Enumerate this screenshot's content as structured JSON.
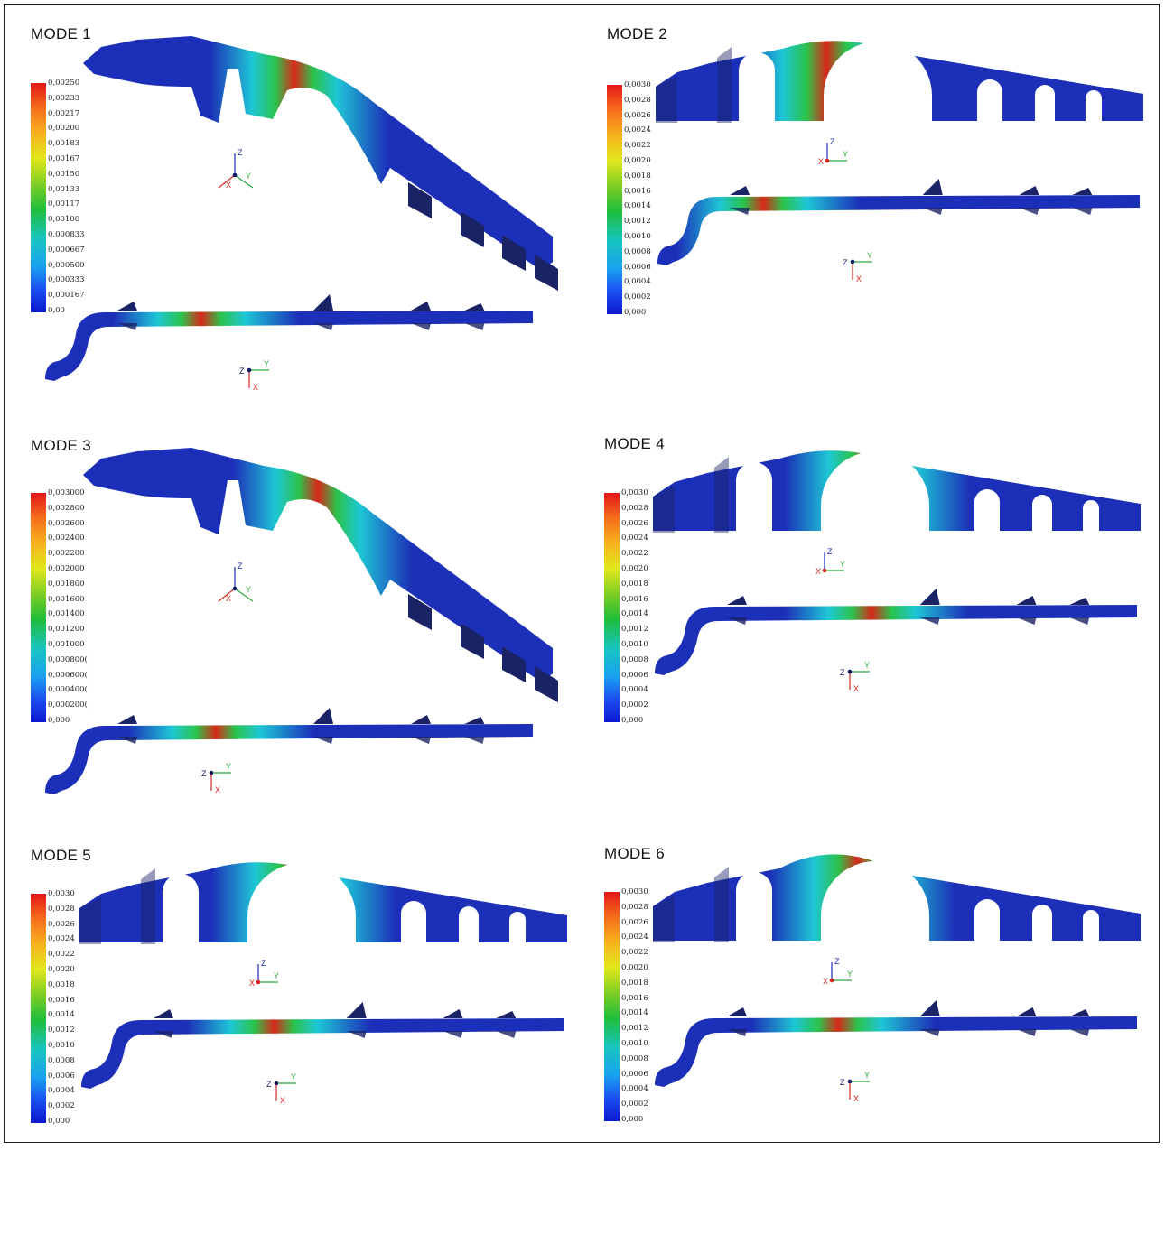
{
  "panels": [
    {
      "title": "MODE 1",
      "style": "persp",
      "legend": [
        "0,00250",
        "0,00233",
        "0,00217",
        "0,00200",
        "0,00183",
        "0,00167",
        "0,00150",
        "0,00133",
        "0,00117",
        "0,00100",
        "0,000833",
        "0,000667",
        "0,000500",
        "0,000333",
        "0,000167",
        "0,00"
      ]
    },
    {
      "title": "MODE 2",
      "style": "side",
      "legend": [
        "0,0030",
        "0,0028",
        "0,0026",
        "0,0024",
        "0,0022",
        "0,0020",
        "0,0018",
        "0,0016",
        "0,0014",
        "0,0012",
        "0,0010",
        "0,0008",
        "0,0006",
        "0,0004",
        "0,0002",
        "0,000"
      ]
    },
    {
      "title": "MODE 3",
      "style": "persp",
      "legend": [
        "0,003000",
        "0,002800",
        "0,002600",
        "0,002400",
        "0,002200",
        "0,002000",
        "0,001800",
        "0,001600",
        "0,001400",
        "0,001200",
        "0,001000",
        "0,000800(",
        "0,000600(",
        "0,000400(",
        "0,000200(",
        "0,000"
      ]
    },
    {
      "title": "MODE 4",
      "style": "side",
      "legend": [
        "0,0030",
        "0,0028",
        "0,0026",
        "0,0024",
        "0,0022",
        "0,0020",
        "0,0018",
        "0,0016",
        "0,0014",
        "0,0012",
        "0,0010",
        "0,0008",
        "0,0006",
        "0,0004",
        "0,0002",
        "0,000"
      ]
    },
    {
      "title": "MODE 5",
      "style": "side",
      "legend": [
        "0,0030",
        "0,0028",
        "0,0026",
        "0,0024",
        "0,0022",
        "0,0020",
        "0,0018",
        "0,0016",
        "0,0014",
        "0,0012",
        "0,0010",
        "0,0008",
        "0,0006",
        "0,0004",
        "0,0002",
        "0,000"
      ]
    },
    {
      "title": "MODE 6",
      "style": "side",
      "legend": [
        "0,0030",
        "0,0028",
        "0,0026",
        "0,0024",
        "0,0022",
        "0,0020",
        "0,0018",
        "0,0016",
        "0,0014",
        "0,0012",
        "0,0010",
        "0,0008",
        "0,0006",
        "0,0004",
        "0,0002",
        "0,000"
      ]
    }
  ],
  "axes": {
    "x": "X",
    "y": "Y",
    "z": "Z"
  },
  "colors": {
    "structure": "#1c2fb8",
    "hot": "#d8281b",
    "mid": "#2bc34a",
    "cool": "#1ec6d6",
    "shade": "#1a2366"
  }
}
